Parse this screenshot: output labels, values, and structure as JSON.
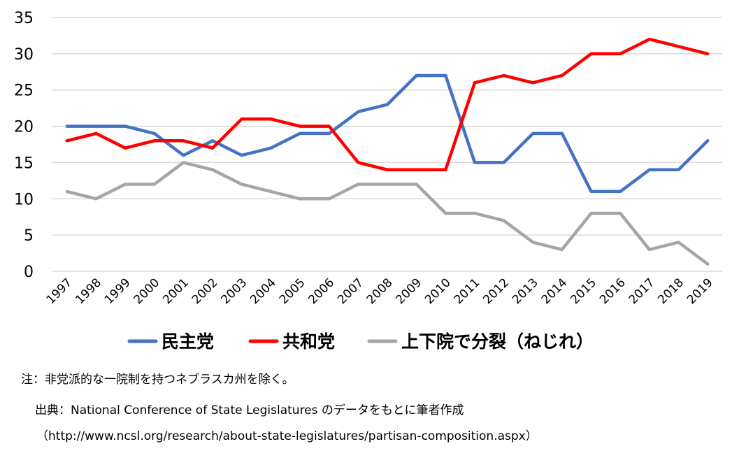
{
  "chart_data": {
    "type": "line",
    "title": "",
    "xlabel": "",
    "ylabel": "",
    "ylim": [
      0,
      35
    ],
    "y_ticks": [
      0,
      5,
      10,
      15,
      20,
      25,
      30,
      35
    ],
    "grid": "horizontal",
    "legend_position": "bottom",
    "categories": [
      "1997",
      "1998",
      "1999",
      "2000",
      "2001",
      "2002",
      "2003",
      "2004",
      "2005",
      "2006",
      "2007",
      "2008",
      "2009",
      "2010",
      "2011",
      "2012",
      "2013",
      "2014",
      "2015",
      "2016",
      "2017",
      "2018",
      "2019"
    ],
    "series": [
      {
        "name": "民主党",
        "color": "#4472C4",
        "values": [
          20,
          20,
          20,
          19,
          16,
          18,
          16,
          17,
          19,
          19,
          22,
          23,
          27,
          27,
          15,
          15,
          19,
          19,
          11,
          11,
          14,
          14,
          18
        ]
      },
      {
        "name": "共和党",
        "color": "#FF0000",
        "values": [
          18,
          19,
          17,
          18,
          18,
          17,
          21,
          21,
          20,
          20,
          15,
          14,
          14,
          14,
          26,
          27,
          26,
          27,
          30,
          30,
          32,
          31,
          30
        ]
      },
      {
        "name": "上下院で分裂（ねじれ）",
        "color": "#A5A5A5",
        "values": [
          11,
          10,
          12,
          12,
          15,
          14,
          12,
          11,
          10,
          10,
          12,
          12,
          12,
          8,
          8,
          7,
          4,
          3,
          8,
          8,
          3,
          4,
          1
        ]
      }
    ]
  },
  "notes": {
    "note": "注：非党派的な一院制を持つネブラスカ州を除く。",
    "source": "出典：National Conference of State Legislatures のデータをもとに筆者作成",
    "url": "（http://www.ncsl.org/research/about-state-legislatures/partisan-composition.aspx）"
  }
}
